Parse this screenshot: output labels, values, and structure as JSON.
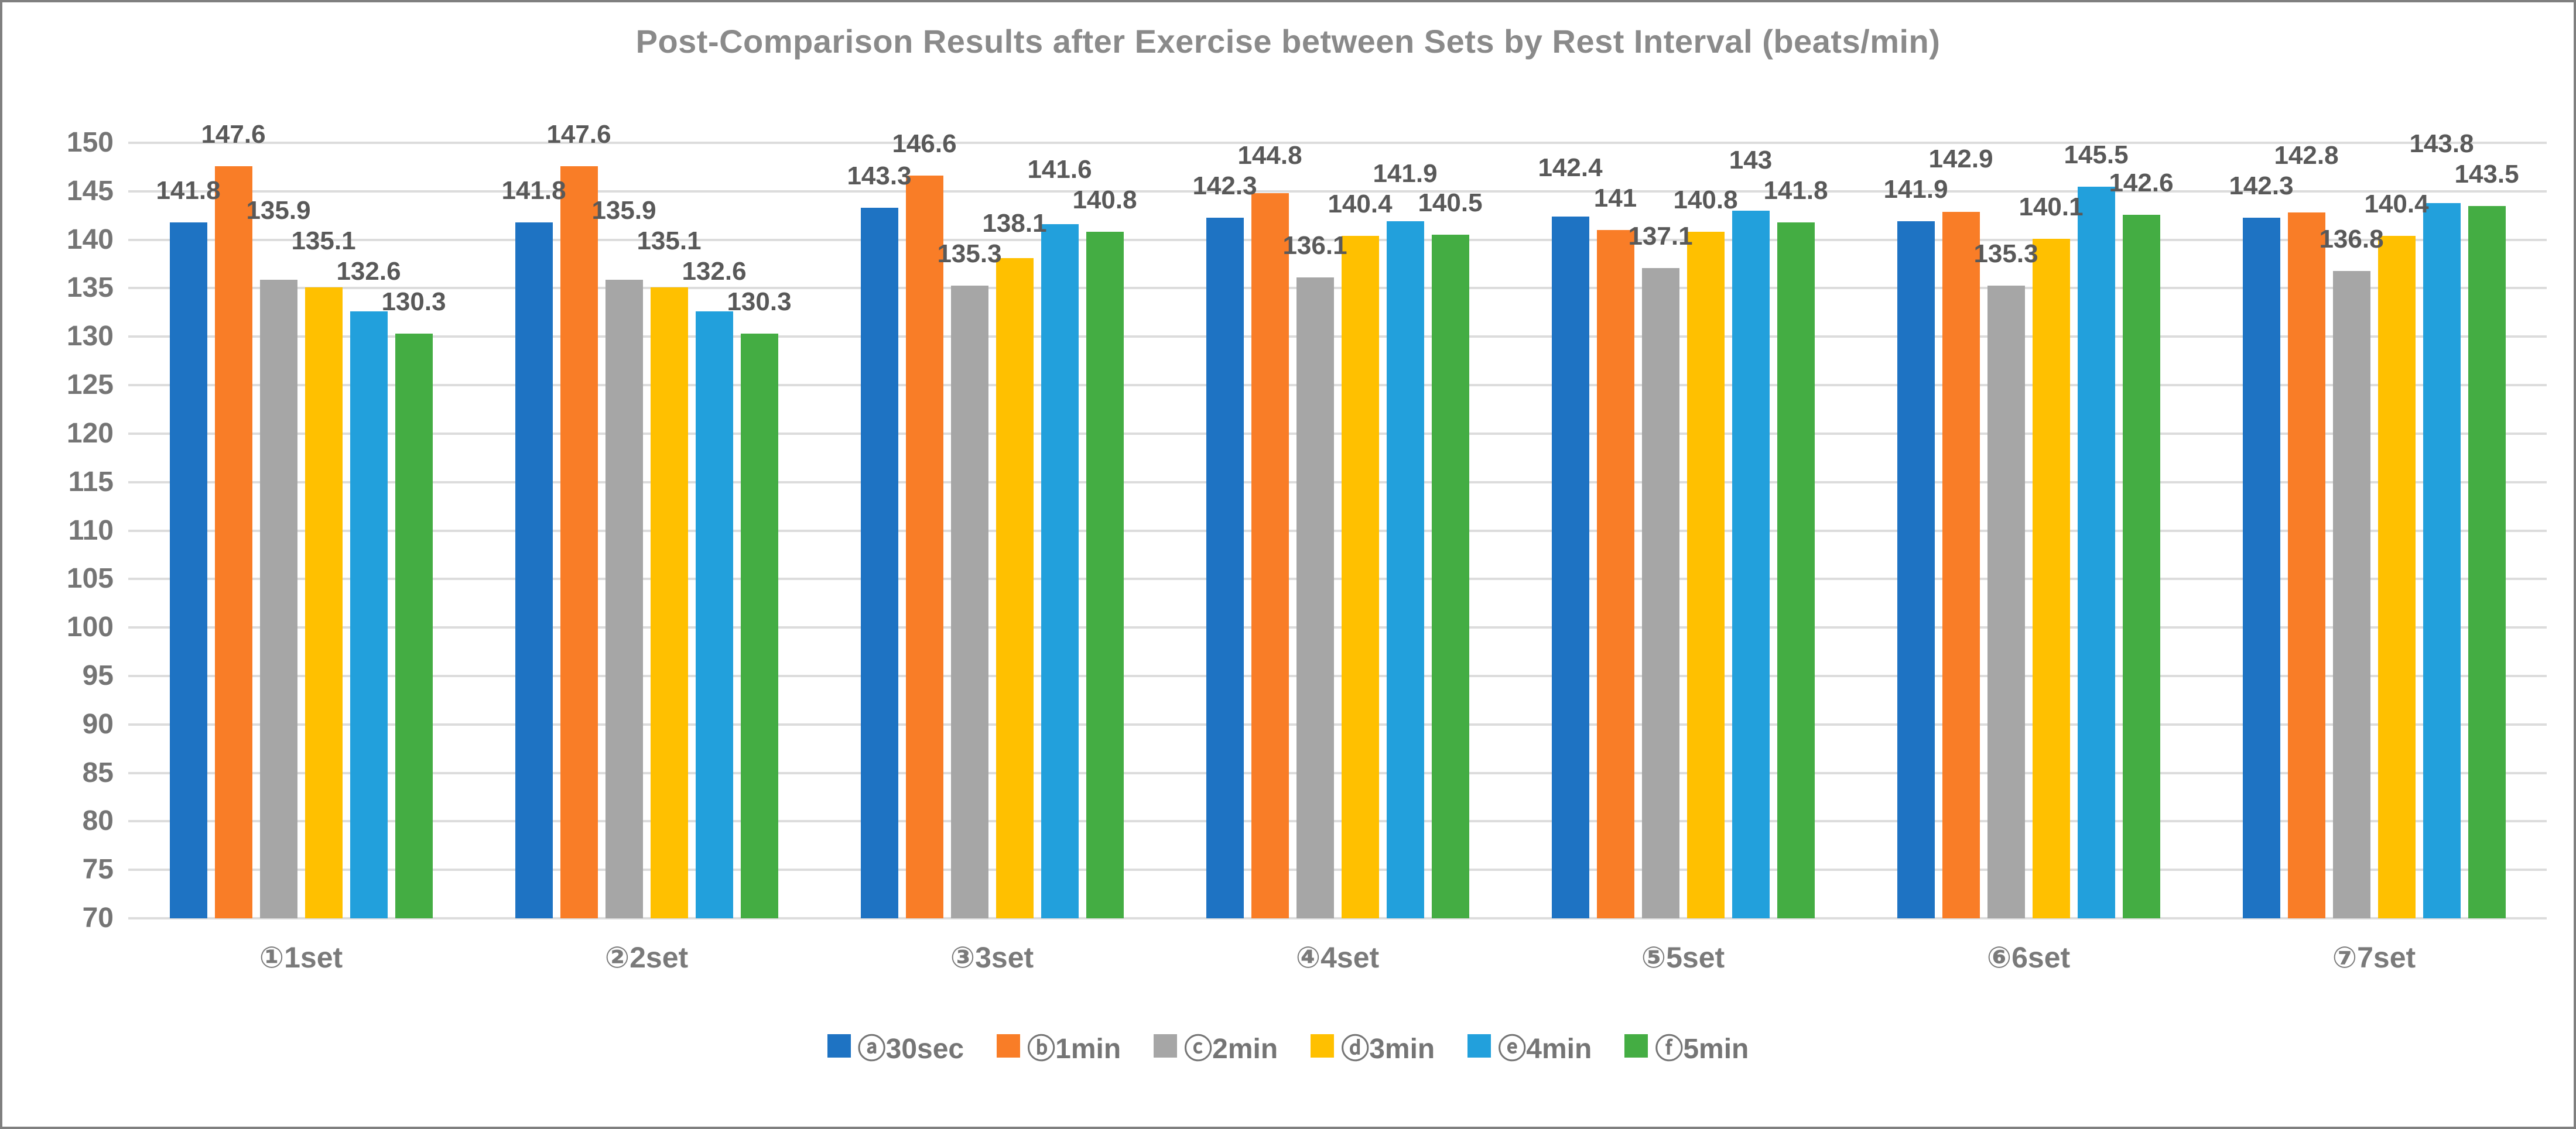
{
  "chart_data": {
    "type": "bar",
    "title": "Post-Comparison Results after Exercise between Sets by Rest Interval (beats/min)",
    "categories": [
      "①1set",
      "②2set",
      "③3set",
      "④4set",
      "⑤5set",
      "⑥6set",
      "⑦7set"
    ],
    "series": [
      {
        "name": "ⓐ30sec",
        "short_name": "30sec",
        "color": "#1E73C3",
        "values": [
          141.8,
          141.8,
          143.3,
          142.3,
          142.4,
          141.9,
          142.3
        ]
      },
      {
        "name": "ⓑ1min",
        "short_name": "1min",
        "color": "#F97D27",
        "values": [
          147.6,
          147.6,
          146.6,
          144.8,
          141,
          142.9,
          142.8
        ]
      },
      {
        "name": "ⓒ2min",
        "short_name": "2min",
        "color": "#A6A6A6",
        "values": [
          135.9,
          135.9,
          135.3,
          136.1,
          137.1,
          135.3,
          136.8
        ]
      },
      {
        "name": "ⓓ3min",
        "short_name": "3min",
        "color": "#FFC000",
        "values": [
          135.1,
          135.1,
          138.1,
          140.4,
          140.8,
          140.1,
          140.4
        ]
      },
      {
        "name": "ⓔ4min",
        "short_name": "4min",
        "color": "#22A0DC",
        "values": [
          132.6,
          132.6,
          141.6,
          141.9,
          143,
          145.5,
          143.8
        ]
      },
      {
        "name": "ⓕ5min",
        "short_name": "5min",
        "color": "#44AD43",
        "values": [
          130.3,
          130.3,
          140.8,
          140.5,
          141.8,
          142.6,
          143.5
        ]
      }
    ],
    "ylim": [
      70,
      150
    ],
    "ytick_step": 5,
    "ytick_labels": [
      "70",
      "75",
      "80",
      "85",
      "90",
      "95",
      "100",
      "105",
      "110",
      "115",
      "120",
      "125",
      "130",
      "135",
      "140",
      "145",
      "150"
    ],
    "grid": true,
    "legend_position": "bottom",
    "text_colors": {
      "title": "#8a8a8a",
      "ticks": "#757575",
      "value_labels": "#595959"
    },
    "gridline_color": "#dcdcdc"
  }
}
